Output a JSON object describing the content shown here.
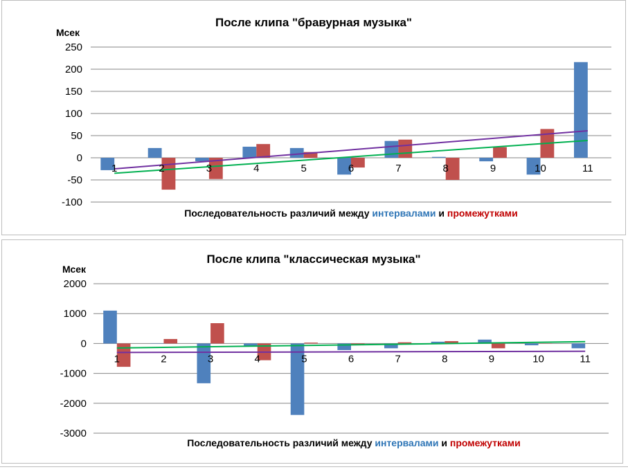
{
  "colors": {
    "intervals": "#4F81BD",
    "gaps": "#C0504D",
    "trend_intervals": "#00B050",
    "trend_gaps": "#7030A0",
    "grid": "#868686"
  },
  "chart_data": [
    {
      "type": "bar",
      "title": "После клипа \"бравурная музыка\"",
      "ylabel": "Мсек",
      "xlabel": {
        "prefix": "Последовательность различий между ",
        "word_intervals": "интервалами",
        "middle": " и ",
        "word_gaps": "промежутками"
      },
      "ylim": [
        -100,
        250
      ],
      "yticks": [
        250,
        200,
        150,
        100,
        50,
        0,
        -50,
        -100
      ],
      "categories": [
        "1",
        "2",
        "3",
        "4",
        "5",
        "6",
        "7",
        "8",
        "9",
        "10",
        "11"
      ],
      "grid": true,
      "series": [
        {
          "key": "intervals",
          "values": [
            -28,
            22,
            -8,
            25,
            22,
            -38,
            38,
            2,
            -8,
            -38,
            216
          ]
        },
        {
          "key": "gaps",
          "values": [
            0,
            -72,
            -48,
            31,
            13,
            -22,
            41,
            -50,
            24,
            65,
            0
          ]
        }
      ],
      "trendlines": [
        {
          "key": "trend_intervals",
          "start": -35,
          "end": 39
        },
        {
          "key": "trend_gaps",
          "start": -25,
          "end": 61
        }
      ]
    },
    {
      "type": "bar",
      "title": "После клипа \"классическая музыка\"",
      "ylabel": "Мсек",
      "xlabel": {
        "prefix": "Последовательность различий между ",
        "word_intervals": "интервалами",
        "middle": " и ",
        "word_gaps": "промежутками"
      },
      "ylim": [
        -3000,
        2000
      ],
      "yticks": [
        2000,
        1000,
        0,
        -1000,
        -2000,
        -3000
      ],
      "categories": [
        "1",
        "2",
        "3",
        "4",
        "5",
        "6",
        "7",
        "8",
        "9",
        "10",
        "11"
      ],
      "grid": true,
      "series": [
        {
          "key": "intervals",
          "values": [
            1100,
            10,
            -1330,
            -90,
            -2390,
            -220,
            -160,
            60,
            130,
            -60,
            -160
          ]
        },
        {
          "key": "gaps",
          "values": [
            -780,
            150,
            680,
            -560,
            30,
            -40,
            40,
            80,
            -160,
            10,
            0
          ]
        }
      ],
      "trendlines": [
        {
          "key": "trend_intervals",
          "start": -150,
          "end": 60
        },
        {
          "key": "trend_gaps",
          "start": -300,
          "end": -260
        }
      ]
    }
  ]
}
